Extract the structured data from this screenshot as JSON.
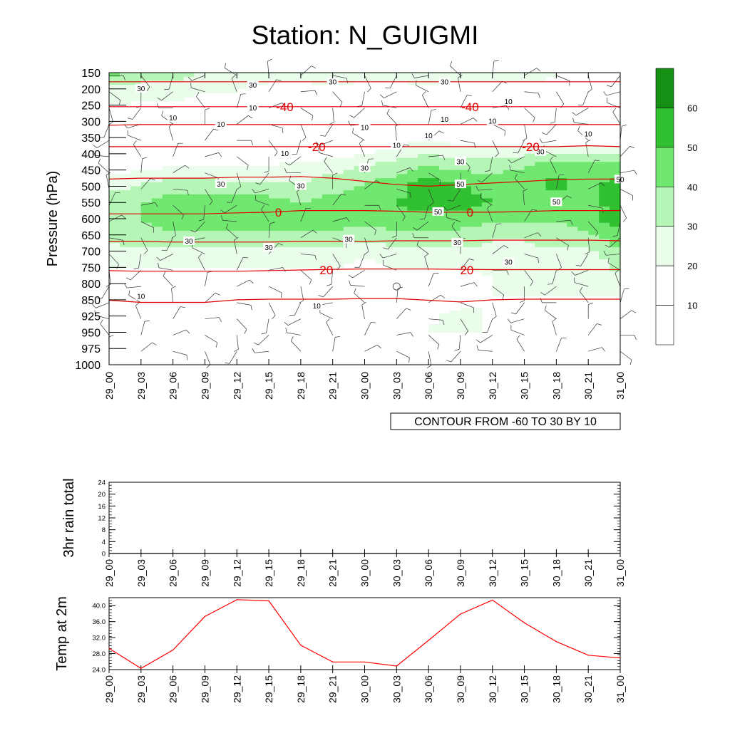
{
  "title": "Station: N_GUIGMI",
  "chart_data": [
    {
      "type": "heatmap",
      "name": "relative-humidity-cross-section",
      "ylabel": "Pressure (hPa)",
      "y_ticks": [
        "150",
        "200",
        "250",
        "300",
        "350",
        "400",
        "450",
        "500",
        "550",
        "600",
        "650",
        "700",
        "750",
        "800",
        "850",
        "925",
        "950",
        "975",
        "1000"
      ],
      "x_ticks": [
        "29_00",
        "29_03",
        "29_06",
        "29_09",
        "29_12",
        "29_15",
        "29_18",
        "29_21",
        "30_00",
        "30_03",
        "30_06",
        "30_09",
        "30_12",
        "30_15",
        "30_18",
        "30_21",
        "31_00"
      ],
      "info_label": "CONTOUR FROM -60 TO 30 BY 10",
      "colorbar": {
        "levels": [
          10,
          20,
          30,
          40,
          50,
          60
        ],
        "colors": [
          "#ffffff",
          "#ffffff",
          "#eafcea",
          "#b5f5b5",
          "#70e870",
          "#30c030",
          "#159015"
        ]
      },
      "rh_field": [
        [
          45,
          35,
          35,
          30,
          30,
          25,
          25,
          30,
          25,
          25,
          30,
          25,
          25,
          25,
          20,
          20,
          20
        ],
        [
          25,
          25,
          25,
          20,
          20,
          15,
          15,
          15,
          15,
          15,
          15,
          15,
          15,
          15,
          15,
          15,
          15
        ],
        [
          20,
          15,
          15,
          15,
          15,
          15,
          10,
          10,
          10,
          10,
          10,
          10,
          15,
          15,
          15,
          15,
          15
        ],
        [
          15,
          10,
          10,
          10,
          10,
          5,
          5,
          5,
          10,
          10,
          10,
          10,
          10,
          15,
          10,
          10,
          10
        ],
        [
          10,
          10,
          10,
          10,
          5,
          5,
          5,
          10,
          15,
          20,
          25,
          20,
          20,
          20,
          20,
          20,
          20
        ],
        [
          15,
          15,
          20,
          20,
          20,
          20,
          25,
          25,
          30,
          35,
          40,
          35,
          35,
          40,
          45,
          45,
          45
        ],
        [
          25,
          30,
          35,
          35,
          30,
          30,
          30,
          35,
          40,
          45,
          55,
          50,
          45,
          45,
          55,
          45,
          55
        ],
        [
          35,
          40,
          45,
          45,
          45,
          45,
          40,
          45,
          45,
          50,
          55,
          55,
          50,
          45,
          45,
          45,
          55
        ],
        [
          35,
          40,
          45,
          45,
          45,
          45,
          45,
          45,
          45,
          45,
          45,
          45,
          40,
          40,
          40,
          45,
          55
        ],
        [
          30,
          35,
          35,
          35,
          35,
          35,
          35,
          35,
          30,
          35,
          35,
          35,
          30,
          30,
          35,
          35,
          45
        ],
        [
          25,
          25,
          25,
          25,
          25,
          25,
          25,
          25,
          20,
          25,
          25,
          25,
          25,
          25,
          25,
          25,
          35
        ],
        [
          15,
          15,
          15,
          15,
          15,
          15,
          15,
          15,
          15,
          15,
          15,
          15,
          20,
          20,
          25,
          25,
          30
        ],
        [
          10,
          10,
          10,
          10,
          10,
          10,
          10,
          10,
          10,
          10,
          15,
          15,
          20,
          20,
          20,
          20,
          20
        ],
        [
          10,
          10,
          5,
          5,
          5,
          10,
          10,
          10,
          10,
          10,
          15,
          20,
          20,
          15,
          15,
          15,
          15
        ],
        [
          10,
          10,
          10,
          10,
          10,
          10,
          10,
          10,
          10,
          10,
          20,
          30,
          15,
          10,
          10,
          10,
          15
        ]
      ],
      "contour_labels_black": [
        {
          "text": "30",
          "p": 200,
          "t": 1
        },
        {
          "text": "30",
          "p": 190,
          "t": 4.5
        },
        {
          "text": "30",
          "p": 180,
          "t": 7
        },
        {
          "text": "30",
          "p": 180,
          "t": 10.5
        },
        {
          "text": "10",
          "p": 240,
          "t": 12.5
        },
        {
          "text": "10",
          "p": 260,
          "t": 4.5
        },
        {
          "text": "10",
          "p": 290,
          "t": 2
        },
        {
          "text": "10",
          "p": 310,
          "t": 3.5
        },
        {
          "text": "10",
          "p": 295,
          "t": 10.5
        },
        {
          "text": "10",
          "p": 300,
          "t": 12
        },
        {
          "text": "10",
          "p": 320,
          "t": 8
        },
        {
          "text": "10",
          "p": 345,
          "t": 10
        },
        {
          "text": "10",
          "p": 340,
          "t": 15
        },
        {
          "text": "10",
          "p": 375,
          "t": 9
        },
        {
          "text": "10",
          "p": 400,
          "t": 5.5
        },
        {
          "text": "30",
          "p": 395,
          "t": 13.5
        },
        {
          "text": "30",
          "p": 425,
          "t": 11
        },
        {
          "text": "30",
          "p": 445,
          "t": 8
        },
        {
          "text": "30",
          "p": 495,
          "t": 3.5
        },
        {
          "text": "30",
          "p": 500,
          "t": 6
        },
        {
          "text": "50",
          "p": 495,
          "t": 11
        },
        {
          "text": "50",
          "p": 480,
          "t": 16
        },
        {
          "text": "50",
          "p": 550,
          "t": 14
        },
        {
          "text": "50",
          "p": 580,
          "t": 10.3
        },
        {
          "text": "30",
          "p": 670,
          "t": 2.5
        },
        {
          "text": "30",
          "p": 665,
          "t": 7.5
        },
        {
          "text": "30",
          "p": 690,
          "t": 5
        },
        {
          "text": "30",
          "p": 675,
          "t": 10.9
        },
        {
          "text": "30",
          "p": 735,
          "t": 12.5
        },
        {
          "text": "10",
          "p": 840,
          "t": 1
        },
        {
          "text": "10",
          "p": 880,
          "t": 6.5
        }
      ],
      "temperature_contours": [
        {
          "level": -40,
          "p": [
            255,
            255,
            255,
            255,
            255,
            255,
            255,
            255,
            255,
            255,
            255,
            255,
            255,
            255,
            255,
            255,
            255
          ]
        },
        {
          "level": -30,
          "p": [
            312,
            310,
            310,
            310,
            310,
            310,
            310,
            310,
            310,
            310,
            310,
            310,
            310,
            310,
            310,
            310,
            310
          ]
        },
        {
          "level": -20,
          "p": [
            378,
            378,
            378,
            378,
            378,
            378,
            378,
            378,
            378,
            378,
            378,
            378,
            378,
            378,
            378,
            375,
            378
          ]
        },
        {
          "level": -10,
          "p": [
            478,
            475,
            475,
            475,
            472,
            472,
            470,
            475,
            485,
            495,
            500,
            495,
            490,
            485,
            480,
            478,
            478
          ]
        },
        {
          "level": 0,
          "p": [
            585,
            585,
            585,
            585,
            582,
            580,
            575,
            575,
            575,
            577,
            580,
            580,
            580,
            578,
            575,
            575,
            575
          ]
        },
        {
          "level": 10,
          "p": [
            670,
            670,
            672,
            672,
            672,
            672,
            670,
            670,
            670,
            668,
            668,
            668,
            666,
            666,
            666,
            666,
            668
          ]
        },
        {
          "level": 20,
          "p": [
            760,
            762,
            762,
            762,
            762,
            760,
            758,
            756,
            755,
            755,
            755,
            756,
            757,
            757,
            757,
            757,
            757
          ]
        },
        {
          "level": 30,
          "p": [
            852,
            862,
            862,
            862,
            850,
            848,
            848,
            848,
            846,
            846,
            852,
            860,
            850,
            848,
            848,
            848,
            848
          ]
        },
        {
          "level": -60,
          "p": [
            178,
            178,
            178,
            178,
            178,
            178,
            178,
            178,
            178,
            178,
            178,
            178,
            178,
            178,
            178,
            178,
            178
          ]
        }
      ],
      "temperature_labels": [
        {
          "text": "-40",
          "p": 255,
          "t": 5.5
        },
        {
          "text": "-40",
          "p": 255,
          "t": 11.3
        },
        {
          "text": "-20",
          "p": 378,
          "t": 6.5
        },
        {
          "text": "-20",
          "p": 378,
          "t": 13.2
        },
        {
          "text": "0",
          "p": 580,
          "t": 5.3
        },
        {
          "text": "0",
          "p": 580,
          "t": 11.3
        },
        {
          "text": "20",
          "p": 758,
          "t": 6.8
        },
        {
          "text": "20",
          "p": 758,
          "t": 11.2
        }
      ],
      "wind_barbs": {
        "description": "wind barbs at every grid point",
        "calm_marker": {
          "p": 795,
          "t": 9
        }
      }
    },
    {
      "type": "line",
      "name": "3hr-rain-total",
      "ylabel": "3hr rain total",
      "ylim": [
        0,
        24
      ],
      "y_ticks": [
        "0",
        "4",
        "8",
        "12",
        "16",
        "20",
        "24"
      ],
      "x_ticks": [
        "29_00",
        "29_03",
        "29_06",
        "29_09",
        "29_12",
        "29_15",
        "29_18",
        "29_21",
        "30_00",
        "30_03",
        "30_06",
        "30_09",
        "30_12",
        "30_15",
        "30_18",
        "30_21",
        "31_00"
      ],
      "values": [
        0,
        0,
        0,
        0,
        0,
        0,
        0,
        0,
        0,
        0,
        0,
        0,
        0,
        0,
        0,
        0,
        0
      ]
    },
    {
      "type": "line",
      "name": "temp-at-2m",
      "ylabel": "Temp at 2m",
      "ylim": [
        24,
        42
      ],
      "y_ticks": [
        "24.0",
        "28.0",
        "32.0",
        "36.0",
        "40.0"
      ],
      "x_ticks": [
        "29_00",
        "29_03",
        "29_06",
        "29_09",
        "29_12",
        "29_15",
        "29_18",
        "29_21",
        "30_00",
        "30_03",
        "30_06",
        "30_09",
        "30_12",
        "30_15",
        "30_18",
        "30_21",
        "31_00"
      ],
      "values": [
        29.3,
        24.3,
        28.9,
        37.3,
        41.5,
        41.2,
        30.1,
        25.9,
        25.9,
        24.9,
        31.3,
        37.9,
        41.4,
        35.7,
        31.0,
        27.6,
        26.9
      ],
      "color": "#ff0000"
    }
  ]
}
